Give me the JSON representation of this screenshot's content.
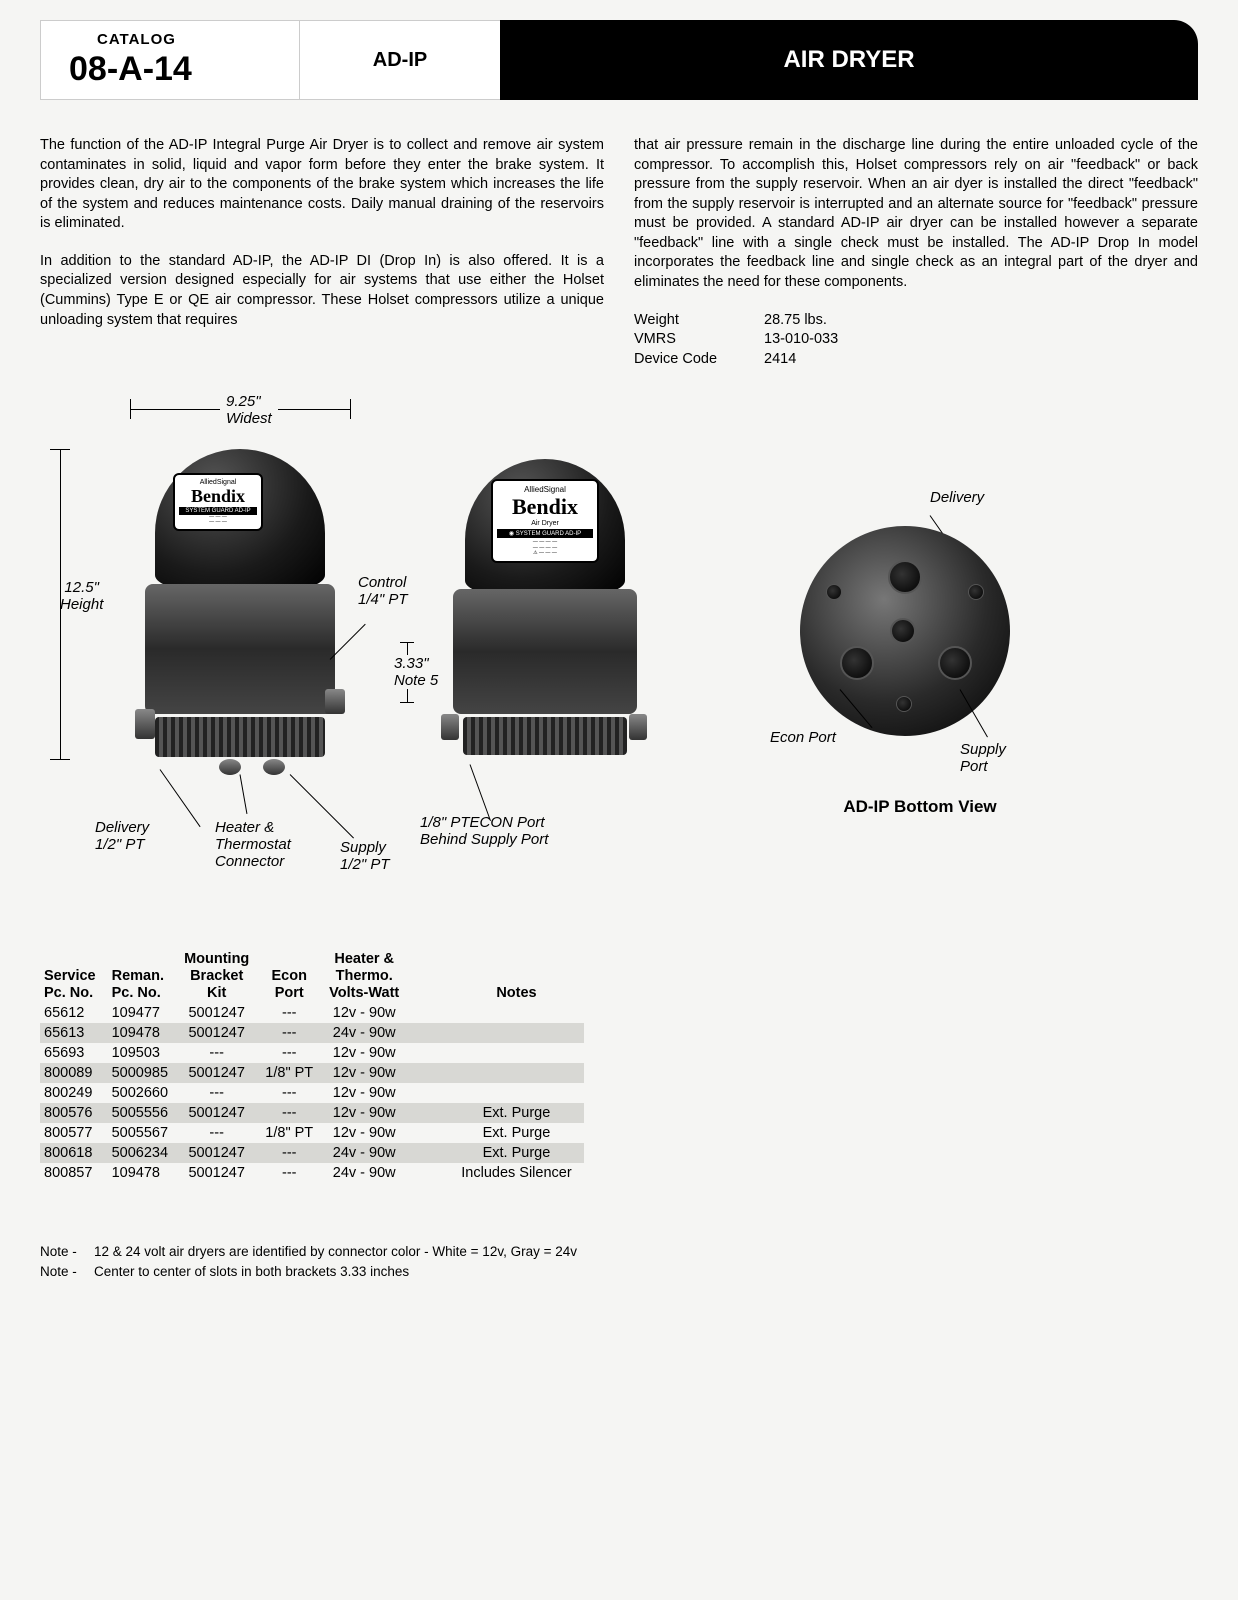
{
  "header": {
    "catalog_label": "CATALOG",
    "catalog_code": "08-A-14",
    "model": "AD-IP",
    "title": "AIR DRYER"
  },
  "body": {
    "p1": "The function of the AD-IP Integral Purge Air Dryer is to collect and remove air system contaminates in solid, liquid and vapor form before they enter the brake system. It provides clean, dry air to the components of the brake system which increases the life of the system and reduces maintenance costs. Daily manual draining of the reservoirs is eliminated.",
    "p2": "In addition to the standard AD-IP, the AD-IP DI (Drop In) is also offered. It is a specialized version designed especially for air systems that use either the Holset (Cummins) Type E or QE air compressor. These Holset compressors utilize a unique unloading system that requires",
    "p3": "that air pressure remain in the discharge line during the entire unloaded cycle of the compressor. To accomplish this, Holset compressors rely on air \"feedback\" or back pressure from the supply reservoir. When an air dyer is installed the direct \"feedback\" from the supply reservoir is interrupted and an alternate source for \"feedback\" pressure must be provided. A standard AD-IP air dryer can be installed however a separate \"feedback\" line with a single check must be installed. The AD-IP Drop In model incorporates the feedback line and single check as an integral part of the dryer and eliminates the need for these components."
  },
  "specs": {
    "weight_label": "Weight",
    "weight_value": "28.75 lbs.",
    "vmrs_label": "VMRS",
    "vmrs_value": "13-010-033",
    "device_label": "Device Code",
    "device_value": "2414"
  },
  "diagram": {
    "width_dim": "9.25\"",
    "width_sub": "Widest",
    "height_dim": "12.5\"",
    "height_sub": "Height",
    "control_label": "Control",
    "control_sub": "1/4\" PT",
    "note5_dim": "3.33\"",
    "note5_sub": "Note 5",
    "delivery_label": "Delivery",
    "delivery_sub": "1/2\" PT",
    "heater_label": "Heater &",
    "heater_sub1": "Thermostat",
    "heater_sub2": "Connector",
    "supply_label": "Supply",
    "supply_sub": "1/2\" PT",
    "ptecon_label": "1/8\" PTECON Port",
    "ptecon_sub": "Behind Supply Port",
    "brand_small": "AlliedSignal",
    "brand": "Bendix",
    "brand_sub": "Air Dryer",
    "guard": "SYSTEM GUARD AD-IP",
    "bv_delivery": "Delivery",
    "bv_econ": "Econ Port",
    "bv_supply": "Supply Port",
    "bv_title": "AD-IP Bottom View"
  },
  "table": {
    "headers": {
      "service": "Service\nPc. No.",
      "reman": "Reman.\nPc. No.",
      "bracket": "Mounting\nBracket\nKit",
      "econ": "Econ\nPort",
      "heater": "Heater &\nThermo.\nVolts-Watt",
      "notes": "Notes"
    },
    "rows": [
      {
        "service": "65612",
        "reman": "109477",
        "bracket": "5001247",
        "econ": "---",
        "heater": "12v - 90w",
        "notes": ""
      },
      {
        "service": "65613",
        "reman": "109478",
        "bracket": "5001247",
        "econ": "---",
        "heater": "24v - 90w",
        "notes": ""
      },
      {
        "service": "65693",
        "reman": "109503",
        "bracket": "---",
        "econ": "---",
        "heater": "12v - 90w",
        "notes": ""
      },
      {
        "service": "800089",
        "reman": "5000985",
        "bracket": "5001247",
        "econ": "1/8\" PT",
        "heater": "12v - 90w",
        "notes": ""
      },
      {
        "service": "800249",
        "reman": "5002660",
        "bracket": "---",
        "econ": "---",
        "heater": "12v - 90w",
        "notes": ""
      },
      {
        "service": "800576",
        "reman": "5005556",
        "bracket": "5001247",
        "econ": "---",
        "heater": "12v - 90w",
        "notes": "Ext. Purge"
      },
      {
        "service": "800577",
        "reman": "5005567",
        "bracket": "---",
        "econ": "1/8\" PT",
        "heater": "12v - 90w",
        "notes": "Ext. Purge"
      },
      {
        "service": "800618",
        "reman": "5006234",
        "bracket": "5001247",
        "econ": "---",
        "heater": "24v - 90w",
        "notes": "Ext. Purge"
      },
      {
        "service": "800857",
        "reman": "109478",
        "bracket": "5001247",
        "econ": "---",
        "heater": "24v - 90w",
        "notes": "Includes Silencer"
      }
    ]
  },
  "notes": {
    "note1": "12 & 24 volt air dryers are identified by connector color - White = 12v, Gray = 24v",
    "note2": "Center to center of slots in both brackets 3.33 inches",
    "label": "Note -"
  }
}
